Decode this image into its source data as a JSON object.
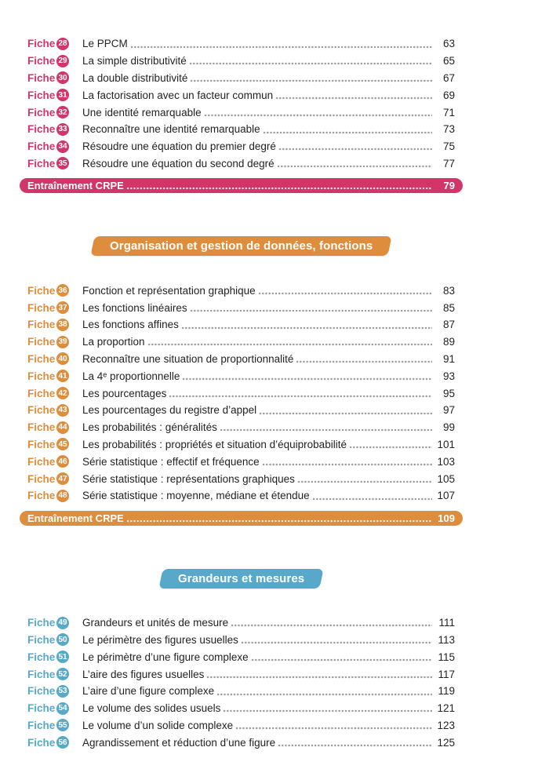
{
  "fiche_label": "Fiche",
  "sections": [
    {
      "key": "calcul",
      "color": "#d23568",
      "entries": [
        {
          "num": "28",
          "title": "Le PPCM",
          "page": "63"
        },
        {
          "num": "29",
          "title": "La simple distributivité",
          "page": "65"
        },
        {
          "num": "30",
          "title": "La double distributivité",
          "page": "67"
        },
        {
          "num": "31",
          "title": "La factorisation avec un facteur commun",
          "page": "69"
        },
        {
          "num": "32",
          "title": "Une identité remarquable",
          "page": "71"
        },
        {
          "num": "33",
          "title": "Reconnaître une identité remarquable",
          "page": "73"
        },
        {
          "num": "34",
          "title": "Résoudre une équation du premier degré",
          "page": "75"
        },
        {
          "num": "35",
          "title": "Résoudre une équation du second degré",
          "page": "77"
        }
      ],
      "footer": {
        "label": "Entraînement CRPE",
        "page": "79"
      }
    },
    {
      "key": "donnees-fonctions",
      "color": "#de8d3d",
      "header": {
        "label": "Organisation et gestion de données, fonctions"
      },
      "entries": [
        {
          "num": "36",
          "title": "Fonction et représentation graphique",
          "page": "83"
        },
        {
          "num": "37",
          "title": "Les fonctions linéaires",
          "page": "85"
        },
        {
          "num": "38",
          "title": "Les fonctions affines",
          "page": "87"
        },
        {
          "num": "39",
          "title": "La proportion",
          "page": "89"
        },
        {
          "num": "40",
          "title": "Reconnaître une situation de proportionnalité",
          "page": "91"
        },
        {
          "num": "41",
          "title": "La 4ᵉ proportionnelle",
          "page": "93"
        },
        {
          "num": "42",
          "title": "Les pourcentages",
          "page": "95"
        },
        {
          "num": "43",
          "title": "Les pourcentages du registre d’appel",
          "page": "97"
        },
        {
          "num": "44",
          "title": "Les probabilités : généralités",
          "page": "99"
        },
        {
          "num": "45",
          "title": "Les probabilités : propriétés et situation d’équiprobabilité",
          "page": "101"
        },
        {
          "num": "46",
          "title": "Série statistique : effectif et fréquence",
          "page": "103"
        },
        {
          "num": "47",
          "title": "Série statistique : représentations graphiques",
          "page": "105"
        },
        {
          "num": "48",
          "title": "Série statistique : moyenne, médiane et étendue",
          "page": "107"
        }
      ],
      "footer": {
        "label": "Entraînement CRPE",
        "page": "109"
      }
    },
    {
      "key": "grandeurs-mesures",
      "color": "#58a9c9",
      "header": {
        "label": "Grandeurs et mesures"
      },
      "entries": [
        {
          "num": "49",
          "title": "Grandeurs et unités de mesure",
          "page": "111"
        },
        {
          "num": "50",
          "title": "Le périmètre des figures usuelles",
          "page": "113"
        },
        {
          "num": "51",
          "title": "Le périmètre d’une figure complexe",
          "page": "115"
        },
        {
          "num": "52",
          "title": "L’aire des figures usuelles",
          "page": "117"
        },
        {
          "num": "53",
          "title": "L’aire d’une figure complexe",
          "page": "119"
        },
        {
          "num": "54",
          "title": "Le volume des solides usuels",
          "page": "121"
        },
        {
          "num": "55",
          "title": "Le volume d’un solide complexe",
          "page": "123"
        },
        {
          "num": "56",
          "title": "Agrandissement et réduction d’une figure",
          "page": "125"
        }
      ]
    }
  ]
}
